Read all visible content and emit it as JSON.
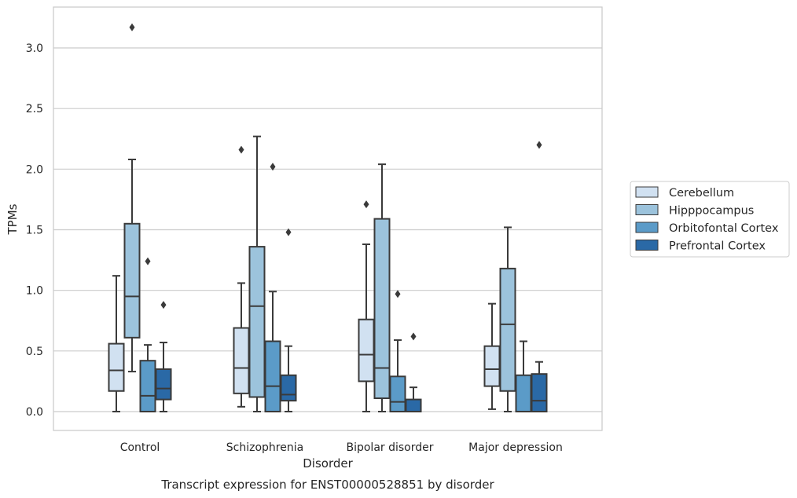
{
  "chart_data": {
    "type": "box",
    "title": "",
    "caption": "Transcript expression for ENST00000528851 by disorder",
    "xlabel": "Disorder",
    "ylabel": "TPMs",
    "ylim": [
      -0.15,
      3.35
    ],
    "yticks": [
      "0.0",
      "0.5",
      "1.0",
      "1.5",
      "2.0",
      "2.5",
      "3.0"
    ],
    "ytick_values": [
      0.0,
      0.5,
      1.0,
      1.5,
      2.0,
      2.5,
      3.0
    ],
    "grid": "horizontal",
    "legend_position": "right",
    "categories": [
      "Control",
      "Schizophrenia",
      "Bipolar disorder",
      "Major depression"
    ],
    "series": [
      {
        "name": "Cerebellum",
        "color": "#d1e1f1",
        "boxes": [
          {
            "whislo": 0.0,
            "q1": 0.17,
            "med": 0.34,
            "q3": 0.56,
            "whishi": 1.12,
            "fliers": []
          },
          {
            "whislo": 0.04,
            "q1": 0.15,
            "med": 0.36,
            "q3": 0.69,
            "whishi": 1.06,
            "fliers": [
              2.16
            ]
          },
          {
            "whislo": 0.0,
            "q1": 0.25,
            "med": 0.47,
            "q3": 0.76,
            "whishi": 1.38,
            "fliers": [
              1.71
            ]
          },
          {
            "whislo": 0.02,
            "q1": 0.21,
            "med": 0.35,
            "q3": 0.54,
            "whishi": 0.89,
            "fliers": []
          }
        ]
      },
      {
        "name": "Hipppocampus",
        "color": "#9cc3dc",
        "boxes": [
          {
            "whislo": 0.33,
            "q1": 0.61,
            "med": 0.95,
            "q3": 1.55,
            "whishi": 2.08,
            "fliers": [
              3.17
            ]
          },
          {
            "whislo": 0.0,
            "q1": 0.12,
            "med": 0.87,
            "q3": 1.36,
            "whishi": 2.27,
            "fliers": []
          },
          {
            "whislo": 0.0,
            "q1": 0.11,
            "med": 0.36,
            "q3": 1.59,
            "whishi": 2.04,
            "fliers": []
          },
          {
            "whislo": 0.0,
            "q1": 0.17,
            "med": 0.72,
            "q3": 1.18,
            "whishi": 1.52,
            "fliers": []
          }
        ]
      },
      {
        "name": "Orbitofontal Cortex",
        "color": "#5b9bc8",
        "boxes": [
          {
            "whislo": 0.0,
            "q1": 0.0,
            "med": 0.13,
            "q3": 0.42,
            "whishi": 0.55,
            "fliers": [
              1.24
            ]
          },
          {
            "whislo": 0.0,
            "q1": 0.0,
            "med": 0.21,
            "q3": 0.58,
            "whishi": 0.99,
            "fliers": [
              2.02
            ]
          },
          {
            "whislo": 0.0,
            "q1": 0.0,
            "med": 0.08,
            "q3": 0.29,
            "whishi": 0.59,
            "fliers": [
              0.97
            ]
          },
          {
            "whislo": 0.0,
            "q1": 0.0,
            "med": 0.0,
            "q3": 0.3,
            "whishi": 0.58,
            "fliers": []
          }
        ]
      },
      {
        "name": "Prefrontal Cortex",
        "color": "#2a69a6",
        "boxes": [
          {
            "whislo": 0.0,
            "q1": 0.1,
            "med": 0.19,
            "q3": 0.35,
            "whishi": 0.57,
            "fliers": [
              0.88
            ]
          },
          {
            "whislo": 0.0,
            "q1": 0.09,
            "med": 0.14,
            "q3": 0.3,
            "whishi": 0.54,
            "fliers": [
              1.48
            ]
          },
          {
            "whislo": 0.0,
            "q1": 0.0,
            "med": 0.0,
            "q3": 0.1,
            "whishi": 0.2,
            "fliers": [
              0.62
            ]
          },
          {
            "whislo": 0.0,
            "q1": 0.0,
            "med": 0.09,
            "q3": 0.31,
            "whishi": 0.41,
            "fliers": [
              2.2
            ]
          }
        ]
      }
    ]
  }
}
